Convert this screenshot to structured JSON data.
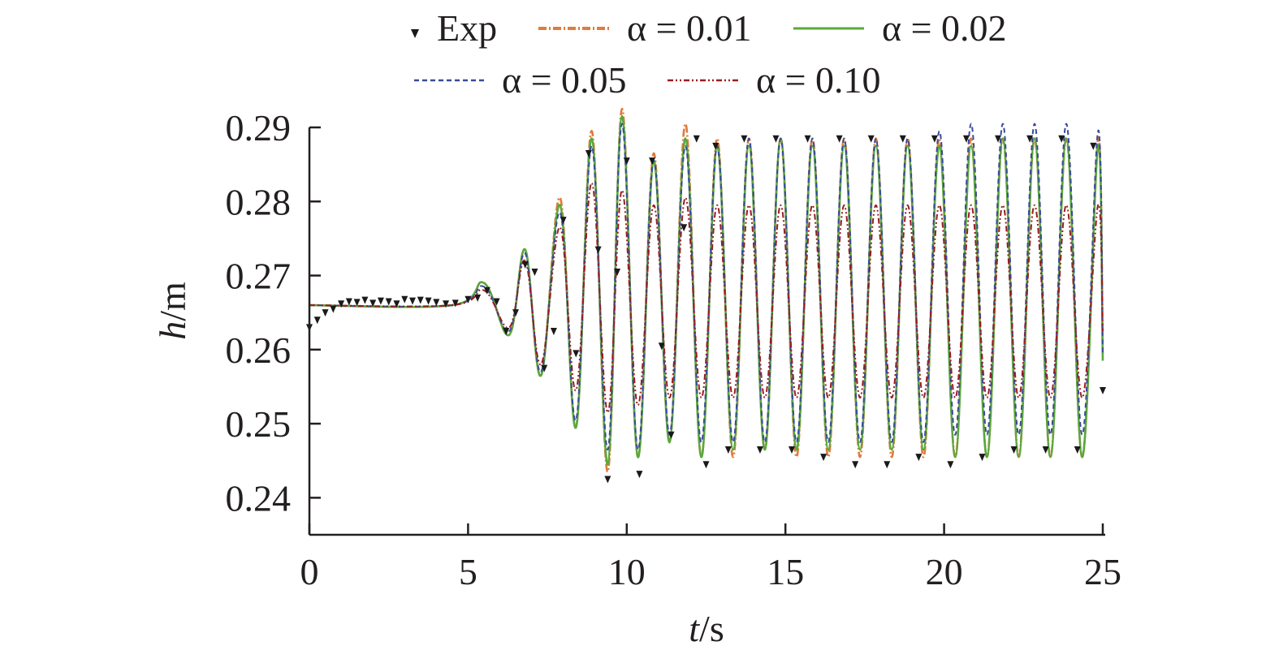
{
  "chart_data": {
    "type": "line",
    "xlabel": {
      "var": "t",
      "unit": "/s"
    },
    "ylabel": {
      "var": "h",
      "unit": "/m"
    },
    "xlim": [
      0,
      25
    ],
    "ylim": [
      0.235,
      0.29
    ],
    "xticks": [
      0,
      5,
      10,
      15,
      20,
      25
    ],
    "xtick_labels": [
      "0",
      "5",
      "10",
      "15",
      "20",
      "25"
    ],
    "yticks": [
      0.24,
      0.25,
      0.26,
      0.27,
      0.28,
      0.29
    ],
    "ytick_labels": [
      "0.24",
      "0.25",
      "0.26",
      "0.27",
      "0.28",
      "0.29"
    ],
    "grid": false,
    "legend_position": "top",
    "legend": [
      {
        "label": "Exp",
        "symbol": "marker"
      },
      {
        "label": "α = 0.01"
      },
      {
        "label": "α = 0.02"
      },
      {
        "label": "α = 0.05"
      },
      {
        "label": "α = 0.10"
      }
    ],
    "series": [
      {
        "name": "Exp",
        "style": "markers",
        "color": "#1a1a1a",
        "x": [
          0.0,
          0.25,
          0.5,
          0.75,
          1.0,
          1.25,
          1.5,
          1.75,
          2.0,
          2.25,
          2.5,
          2.75,
          3.0,
          3.25,
          3.5,
          3.75,
          4.0,
          4.3,
          4.6,
          5.0,
          5.3,
          5.6,
          5.9,
          6.2,
          6.5,
          6.8,
          7.1,
          7.4,
          7.7,
          8.0,
          8.4,
          8.8,
          9.1,
          9.4,
          9.7,
          10.0,
          10.4,
          10.8,
          11.1,
          11.4,
          11.8,
          12.2,
          12.5,
          12.8,
          13.2,
          13.7,
          14.2,
          14.7,
          15.2,
          15.7,
          16.2,
          16.7,
          17.2,
          17.7,
          18.2,
          18.7,
          19.2,
          19.7,
          20.2,
          20.7,
          21.2,
          21.7,
          22.2,
          22.7,
          23.2,
          23.7,
          24.2,
          24.7,
          25.0
        ],
        "values": [
          0.263,
          0.264,
          0.265,
          0.2655,
          0.2662,
          0.2665,
          0.2664,
          0.2667,
          0.2663,
          0.2666,
          0.2665,
          0.2662,
          0.2668,
          0.2666,
          0.2667,
          0.2666,
          0.2664,
          0.2662,
          0.2663,
          0.2668,
          0.267,
          0.268,
          0.2665,
          0.2625,
          0.265,
          0.2715,
          0.2705,
          0.2575,
          0.2625,
          0.2775,
          0.2595,
          0.2865,
          0.2735,
          0.2425,
          0.2705,
          0.2855,
          0.2432,
          0.2855,
          0.2605,
          0.2485,
          0.2765,
          0.2885,
          0.2445,
          0.2875,
          0.2465,
          0.2885,
          0.2465,
          0.2885,
          0.2465,
          0.2885,
          0.2455,
          0.2885,
          0.2445,
          0.2885,
          0.2445,
          0.2885,
          0.2455,
          0.2885,
          0.2445,
          0.2885,
          0.2455,
          0.2885,
          0.2465,
          0.2885,
          0.2465,
          0.2885,
          0.2465,
          0.2875,
          0.2545
        ]
      },
      {
        "name": "α = 0.01",
        "color": "#e07b39",
        "dash": "10 3 2 3",
        "width": 2.6,
        "x": [
          0.0,
          4.5,
          5.5,
          6.3,
          6.8,
          7.3,
          7.9,
          8.4,
          8.9,
          9.4,
          9.85,
          10.35,
          10.85,
          11.35,
          11.85,
          12.35,
          12.85,
          13.35,
          13.85,
          14.35,
          14.85,
          15.35,
          15.85,
          16.35,
          16.85,
          17.35,
          17.85,
          18.35,
          18.85,
          19.35,
          19.85,
          20.35,
          20.85,
          21.35,
          21.85,
          22.35,
          22.85,
          23.35,
          23.85,
          24.35,
          24.85,
          25.0
        ],
        "values": [
          0.266,
          0.266,
          0.269,
          0.262,
          0.2735,
          0.2565,
          0.2805,
          0.2495,
          0.2895,
          0.2435,
          0.2925,
          0.2455,
          0.2865,
          0.2475,
          0.2905,
          0.2455,
          0.2885,
          0.2455,
          0.2885,
          0.2465,
          0.2885,
          0.2455,
          0.2885,
          0.2455,
          0.2885,
          0.2455,
          0.2885,
          0.2455,
          0.2885,
          0.2455,
          0.2885,
          0.2455,
          0.2885,
          0.2455,
          0.2885,
          0.2455,
          0.2885,
          0.2455,
          0.2885,
          0.2455,
          0.2885,
          0.2595
        ]
      },
      {
        "name": "α = 0.02",
        "color": "#5aa83d",
        "dash": "",
        "width": 2.6,
        "x": [
          0.0,
          4.5,
          5.5,
          6.3,
          6.8,
          7.3,
          7.9,
          8.4,
          8.9,
          9.4,
          9.85,
          10.35,
          10.85,
          11.35,
          11.85,
          12.35,
          12.85,
          13.35,
          13.85,
          14.35,
          14.85,
          15.35,
          15.85,
          16.35,
          16.85,
          17.35,
          17.85,
          18.35,
          18.85,
          19.35,
          19.85,
          20.35,
          20.85,
          21.35,
          21.85,
          22.35,
          22.85,
          23.35,
          23.85,
          24.35,
          24.85,
          25.0
        ],
        "values": [
          0.266,
          0.266,
          0.269,
          0.262,
          0.2735,
          0.2565,
          0.2795,
          0.2495,
          0.2885,
          0.2445,
          0.2915,
          0.2455,
          0.2855,
          0.2475,
          0.2885,
          0.2455,
          0.2875,
          0.2465,
          0.2875,
          0.2465,
          0.2885,
          0.2465,
          0.2875,
          0.2465,
          0.2875,
          0.2465,
          0.2875,
          0.2465,
          0.2875,
          0.2465,
          0.2875,
          0.2455,
          0.2875,
          0.2455,
          0.2885,
          0.2455,
          0.2885,
          0.2455,
          0.2885,
          0.2455,
          0.2875,
          0.2585
        ]
      },
      {
        "name": "α = 0.05",
        "color": "#3b4a9a",
        "dash": "6 4",
        "width": 2,
        "x": [
          0.0,
          4.5,
          5.5,
          6.3,
          6.8,
          7.3,
          7.9,
          8.4,
          8.9,
          9.4,
          9.85,
          10.35,
          10.85,
          11.35,
          11.85,
          12.35,
          12.85,
          13.35,
          13.85,
          14.35,
          14.85,
          15.35,
          15.85,
          16.35,
          16.85,
          17.35,
          17.85,
          18.35,
          18.85,
          19.35,
          19.85,
          20.35,
          20.85,
          21.35,
          21.85,
          22.35,
          22.85,
          23.35,
          23.85,
          24.35,
          24.85,
          25.0
        ],
        "values": [
          0.266,
          0.266,
          0.2685,
          0.2625,
          0.273,
          0.257,
          0.2785,
          0.2505,
          0.2875,
          0.2465,
          0.2905,
          0.2465,
          0.2855,
          0.2485,
          0.2875,
          0.2475,
          0.2875,
          0.2475,
          0.2885,
          0.2475,
          0.2885,
          0.2475,
          0.2885,
          0.2475,
          0.2885,
          0.2475,
          0.2885,
          0.2475,
          0.2885,
          0.2475,
          0.2895,
          0.2485,
          0.2905,
          0.2485,
          0.2905,
          0.2485,
          0.2905,
          0.2485,
          0.2905,
          0.2485,
          0.2895,
          0.2595
        ]
      },
      {
        "name": "α = 0.10",
        "color": "#9b1c1f",
        "dash": "7 3 2 3 2 3",
        "width": 2,
        "x": [
          0.0,
          4.5,
          5.5,
          6.3,
          6.8,
          7.3,
          7.9,
          8.4,
          8.9,
          9.4,
          9.85,
          10.35,
          10.85,
          11.35,
          11.85,
          12.35,
          12.85,
          13.35,
          13.85,
          14.35,
          14.85,
          15.35,
          15.85,
          16.35,
          16.85,
          17.35,
          17.85,
          18.35,
          18.85,
          19.35,
          19.85,
          20.35,
          20.85,
          21.35,
          21.85,
          22.35,
          22.85,
          23.35,
          23.85,
          24.35,
          24.85,
          25.0
        ],
        "values": [
          0.266,
          0.266,
          0.268,
          0.263,
          0.272,
          0.258,
          0.2765,
          0.2545,
          0.2825,
          0.2515,
          0.2815,
          0.2525,
          0.2795,
          0.2535,
          0.2805,
          0.2535,
          0.2795,
          0.2535,
          0.2795,
          0.2535,
          0.2795,
          0.2535,
          0.2795,
          0.2535,
          0.2795,
          0.2535,
          0.2795,
          0.2535,
          0.2795,
          0.2535,
          0.2795,
          0.2535,
          0.2795,
          0.2535,
          0.2795,
          0.2535,
          0.2795,
          0.2535,
          0.2795,
          0.2535,
          0.2795,
          0.2625
        ]
      }
    ]
  }
}
